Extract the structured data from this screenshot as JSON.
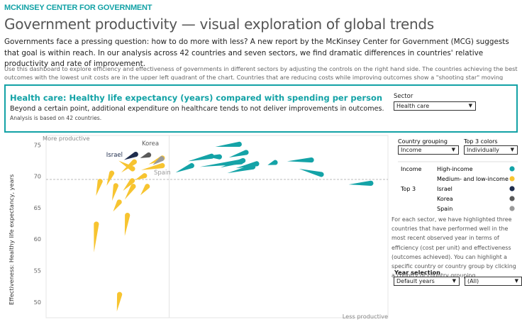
{
  "header": {
    "brand": "MCKINSEY CENTER FOR GOVERNMENT",
    "title": "Government productivity — visual exploration of global trends",
    "intro": "Governments face a pressing question: how to do more with less? A new report by the McKinsey Center for Government (MCG) suggests that goal is within reach. In our analysis across 42 countries and seven sectors, we find dramatic differences in countries' relative productivity and rate of improvement.",
    "instructions": "Use this dashboard to explore efficiency and effectiveness of governments in different sectors by adjusting the controls on the right hand side. The countries achieving the best outcomes with the lowest unit costs are in the upper left quadrant of the chart. Countries that are reducing costs while improving outcomes show a \"shooting star\" moving towards the top left."
  },
  "summary": {
    "heading": "Health care: Healthy life expectancy (years) compared with spending per person",
    "subheading": "Beyond a certain point, additional expenditure on healthcare tends to not deliver improvements in outcomes.",
    "note": "Analysis is based on 42 countries.",
    "sector_label": "Sector",
    "sector_value": "Health care"
  },
  "controls": {
    "country_grouping_label": "Country grouping",
    "country_grouping_value": "Income",
    "top3_colors_label": "Top 3 colors",
    "top3_colors_value": "Individually",
    "year_selection_label": "Year selection",
    "year_value": "Default years",
    "year_filter_value": "(All)"
  },
  "legend": {
    "income_heading": "Income",
    "top3_heading": "Top 3",
    "items": [
      {
        "label": "High-income",
        "color": "#14a3a7"
      },
      {
        "label": "Medium- and low-income",
        "color": "#f7c430"
      },
      {
        "label": "Israel",
        "color": "#1f2d4d"
      },
      {
        "label": "Korea",
        "color": "#5a5a5a"
      },
      {
        "label": "Spain",
        "color": "#9a9a9a"
      }
    ]
  },
  "description": "For each sector, we have highlighted three countries that have performed well in the most recent observed year in terms of efficiency (cost per unit) and effectiveness (outcomes achieved). You can highlight a specific country or country group by clicking a country or country grouping.",
  "colors": {
    "accent": "#13a2a6",
    "high_income": "#14a3a7",
    "low_income": "#f7c430",
    "israel": "#1f2d4d",
    "korea": "#5a5a5a",
    "spain": "#9a9a9a"
  },
  "chart_data": {
    "type": "scatter",
    "ylabel": "Effectiveness: Healthy life expectancy, years",
    "yticks": [
      50,
      55,
      60,
      65,
      70,
      75
    ],
    "ylim": [
      47.5,
      76.5
    ],
    "xlim": [
      0,
      100
    ],
    "ref_y": 69.5,
    "ref_x": 36,
    "corner_top": "More productive",
    "corner_bottom": "Less productive",
    "annotations": [
      {
        "text": "Israel",
        "x": 20,
        "y": 73.1,
        "color": "#1f2d4d"
      },
      {
        "text": "Korea",
        "x": 30.5,
        "y": 74.9,
        "color": "#5a5a5a"
      },
      {
        "text": "Spain",
        "x": 34,
        "y": 70.3,
        "color": "#9a9a9a"
      }
    ],
    "series": [
      {
        "name": "Medium- and low-income",
        "color": "#f7c430",
        "stars": [
          {
            "x0": 21.2,
            "y0": 72.5,
            "x1": 25.3,
            "y1": 71.2
          },
          {
            "x0": 17.7,
            "y0": 68.5,
            "x1": 19.2,
            "y1": 70.5
          },
          {
            "x0": 14.6,
            "y0": 66.9,
            "x1": 15.8,
            "y1": 69.2
          },
          {
            "x0": 14.0,
            "y0": 57.9,
            "x1": 14.7,
            "y1": 62.4
          },
          {
            "x0": 20.7,
            "y0": 48.5,
            "x1": 21.5,
            "y1": 51.2
          },
          {
            "x0": 22.0,
            "y0": 70.6,
            "x1": 25.8,
            "y1": 72.3
          },
          {
            "x0": 26.0,
            "y0": 69.4,
            "x1": 28.8,
            "y1": 70.1
          },
          {
            "x0": 19.3,
            "y0": 66.1,
            "x1": 20.4,
            "y1": 68.5
          },
          {
            "x0": 19.6,
            "y0": 64.4,
            "x1": 21.4,
            "y1": 65.9
          },
          {
            "x0": 23.0,
            "y0": 60.5,
            "x1": 23.8,
            "y1": 63.8
          },
          {
            "x0": 23.0,
            "y0": 66.3,
            "x1": 25.5,
            "y1": 68.4
          },
          {
            "x0": 22.5,
            "y0": 67.7,
            "x1": 25.2,
            "y1": 69.3
          },
          {
            "x0": 27.6,
            "y0": 67.0,
            "x1": 29.6,
            "y1": 68.4
          },
          {
            "x0": 27.8,
            "y0": 71.0,
            "x1": 34.0,
            "y1": 71.7
          },
          {
            "x0": 30.0,
            "y0": 71.9,
            "x1": 34.0,
            "y1": 72.9
          }
        ]
      },
      {
        "name": "High-income",
        "color": "#14a3a7",
        "stars": [
          {
            "x0": 49.5,
            "y0": 74.7,
            "x1": 56.5,
            "y1": 75.1
          },
          {
            "x0": 41.5,
            "y0": 72.4,
            "x1": 48.4,
            "y1": 73.2
          },
          {
            "x0": 53.5,
            "y0": 73.0,
            "x1": 58.5,
            "y1": 73.8
          },
          {
            "x0": 37.9,
            "y0": 70.6,
            "x1": 42.6,
            "y1": 71.7
          },
          {
            "x0": 45.0,
            "y0": 71.5,
            "x1": 57.0,
            "y1": 72.3
          },
          {
            "x0": 51.0,
            "y0": 71.4,
            "x1": 57.6,
            "y1": 72.5
          },
          {
            "x0": 53.0,
            "y0": 70.5,
            "x1": 60.5,
            "y1": 71.5
          },
          {
            "x0": 55.5,
            "y0": 71.3,
            "x1": 61.6,
            "y1": 72.0
          },
          {
            "x0": 74.0,
            "y0": 71.2,
            "x1": 80.5,
            "y1": 70.3
          },
          {
            "x0": 70.5,
            "y0": 72.4,
            "x1": 77.6,
            "y1": 72.6
          },
          {
            "x0": 88.5,
            "y0": 68.7,
            "x1": 95.0,
            "y1": 68.9
          },
          {
            "x0": 64.8,
            "y0": 71.8,
            "x1": 67.0,
            "y1": 72.2
          },
          {
            "x0": 46.5,
            "y0": 73.2,
            "x1": 50.7,
            "y1": 73.1
          }
        ]
      },
      {
        "name": "Israel",
        "color": "#1f2d4d",
        "stars": [
          {
            "x0": 22.8,
            "y0": 72.6,
            "x1": 26.2,
            "y1": 73.5
          }
        ]
      },
      {
        "name": "Korea",
        "color": "#5a5a5a",
        "stars": [
          {
            "x0": 27.5,
            "y0": 72.9,
            "x1": 30.0,
            "y1": 73.4
          }
        ]
      },
      {
        "name": "Spain",
        "color": "#9a9a9a",
        "stars": [
          {
            "x0": 31.2,
            "y0": 71.8,
            "x1": 33.8,
            "y1": 72.8
          }
        ]
      }
    ]
  }
}
